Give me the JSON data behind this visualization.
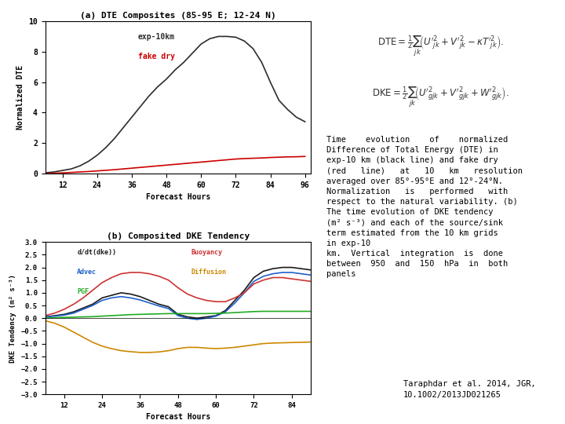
{
  "title_a": "(a) DTE Composites (85-95 E; 12-24 N)",
  "title_b": "(b) Composited DKE Tendency",
  "xlabel": "Forecast Hours",
  "ylabel_a": "Normalized DTE",
  "ylabel_b": "DKE Tendency (m² s⁻³)",
  "x_ticks": [
    12,
    24,
    36,
    48,
    60,
    72,
    84,
    96
  ],
  "x_ticks_b": [
    12,
    24,
    36,
    48,
    60,
    72,
    84
  ],
  "xlim_a": [
    6,
    98
  ],
  "xlim_b": [
    6,
    90
  ],
  "ylim_a": [
    0,
    10
  ],
  "ylim_b": [
    -3,
    3
  ],
  "y_ticks_a": [
    0,
    2,
    4,
    6,
    8,
    10
  ],
  "y_ticks_b": [
    -3,
    -2.5,
    -2,
    -1.5,
    -1,
    -0.5,
    0,
    0.5,
    1,
    1.5,
    2,
    2.5,
    3
  ],
  "exp10km_x": [
    6,
    9,
    12,
    15,
    18,
    21,
    24,
    27,
    30,
    33,
    36,
    39,
    42,
    45,
    48,
    51,
    54,
    57,
    60,
    63,
    66,
    69,
    72,
    75,
    78,
    81,
    84,
    87,
    90,
    93,
    96
  ],
  "exp10km_y": [
    0.05,
    0.1,
    0.2,
    0.3,
    0.5,
    0.8,
    1.2,
    1.7,
    2.3,
    3.0,
    3.7,
    4.4,
    5.1,
    5.7,
    6.2,
    6.8,
    7.3,
    7.9,
    8.5,
    8.85,
    9.0,
    9.0,
    8.95,
    8.7,
    8.2,
    7.3,
    6.0,
    4.8,
    4.2,
    3.7,
    3.4
  ],
  "fakedry_x": [
    6,
    9,
    12,
    15,
    18,
    21,
    24,
    27,
    30,
    33,
    36,
    39,
    42,
    45,
    48,
    51,
    54,
    57,
    60,
    63,
    66,
    69,
    72,
    75,
    78,
    81,
    84,
    87,
    90,
    93,
    96
  ],
  "fakedry_y": [
    0.0,
    0.02,
    0.04,
    0.07,
    0.1,
    0.13,
    0.17,
    0.21,
    0.25,
    0.3,
    0.35,
    0.4,
    0.45,
    0.5,
    0.55,
    0.6,
    0.65,
    0.7,
    0.75,
    0.8,
    0.85,
    0.9,
    0.95,
    0.98,
    1.0,
    1.02,
    1.05,
    1.07,
    1.09,
    1.1,
    1.12
  ],
  "dkdt_x": [
    6,
    9,
    12,
    15,
    18,
    21,
    24,
    27,
    30,
    33,
    36,
    39,
    42,
    45,
    48,
    51,
    54,
    57,
    60,
    63,
    66,
    69,
    72,
    75,
    78,
    81,
    84,
    87,
    90
  ],
  "dkdt_y": [
    0.05,
    0.1,
    0.15,
    0.25,
    0.4,
    0.55,
    0.8,
    0.9,
    1.0,
    0.95,
    0.85,
    0.7,
    0.55,
    0.45,
    0.15,
    0.05,
    0.0,
    0.05,
    0.1,
    0.3,
    0.7,
    1.1,
    1.6,
    1.85,
    1.95,
    2.0,
    2.0,
    1.95,
    1.9
  ],
  "advec_x": [
    6,
    9,
    12,
    15,
    18,
    21,
    24,
    27,
    30,
    33,
    36,
    39,
    42,
    45,
    48,
    51,
    54,
    57,
    60,
    63,
    66,
    69,
    72,
    75,
    78,
    81,
    84,
    87,
    90
  ],
  "advec_y": [
    0.05,
    0.08,
    0.12,
    0.2,
    0.35,
    0.5,
    0.7,
    0.8,
    0.85,
    0.8,
    0.72,
    0.6,
    0.48,
    0.38,
    0.1,
    0.0,
    -0.05,
    0.0,
    0.08,
    0.25,
    0.6,
    1.0,
    1.45,
    1.65,
    1.75,
    1.8,
    1.8,
    1.75,
    1.7
  ],
  "buoyancy_x": [
    6,
    9,
    12,
    15,
    18,
    21,
    24,
    27,
    30,
    33,
    36,
    39,
    42,
    45,
    48,
    51,
    54,
    57,
    60,
    63,
    66,
    69,
    72,
    75,
    78,
    81,
    84,
    87,
    90
  ],
  "buoyancy_y": [
    0.1,
    0.2,
    0.35,
    0.55,
    0.8,
    1.1,
    1.4,
    1.6,
    1.75,
    1.8,
    1.8,
    1.75,
    1.65,
    1.5,
    1.2,
    0.95,
    0.8,
    0.7,
    0.65,
    0.65,
    0.8,
    1.0,
    1.35,
    1.5,
    1.6,
    1.6,
    1.55,
    1.5,
    1.45
  ],
  "pgf_x": [
    6,
    9,
    12,
    15,
    18,
    21,
    24,
    27,
    30,
    33,
    36,
    39,
    42,
    45,
    48,
    51,
    54,
    57,
    60,
    63,
    66,
    69,
    72,
    75,
    78,
    81,
    84,
    87,
    90
  ],
  "pgf_y": [
    0.0,
    0.02,
    0.03,
    0.04,
    0.05,
    0.06,
    0.08,
    0.1,
    0.12,
    0.14,
    0.15,
    0.16,
    0.17,
    0.18,
    0.18,
    0.18,
    0.18,
    0.18,
    0.19,
    0.2,
    0.22,
    0.24,
    0.26,
    0.27,
    0.27,
    0.27,
    0.27,
    0.27,
    0.27
  ],
  "diffusion_x": [
    6,
    9,
    12,
    15,
    18,
    21,
    24,
    27,
    30,
    33,
    36,
    39,
    42,
    45,
    48,
    51,
    54,
    57,
    60,
    63,
    66,
    69,
    72,
    75,
    78,
    81,
    84,
    87,
    90
  ],
  "diffusion_y": [
    -0.1,
    -0.2,
    -0.35,
    -0.55,
    -0.75,
    -0.95,
    -1.1,
    -1.2,
    -1.28,
    -1.32,
    -1.35,
    -1.35,
    -1.33,
    -1.28,
    -1.2,
    -1.15,
    -1.15,
    -1.18,
    -1.2,
    -1.18,
    -1.15,
    -1.1,
    -1.05,
    -1.0,
    -0.98,
    -0.97,
    -0.96,
    -0.95,
    -0.94
  ],
  "right_text_lines": [
    "Time    evolution    of    normalized",
    "Difference of Total Energy (DTE) in",
    "exp-10 km (black line) and fake dry",
    "(red   line)   at   10   km   resolution",
    "averaged over 85°-95°E and 12°-24°N.",
    "Normalization   is   performed   with",
    "respect to the natural variability. (b)",
    "The time evolution of DKE tendency",
    "(m² s⁻³) and each of the source/sink",
    "term estimated from the 10 km grids",
    "in exp-10",
    "km.  Vertical  integration  is  done",
    "between  950  and  150  hPa  in  both",
    "panels"
  ],
  "citation": "Taraphdar et al. 2014, JGR,\n10.1002/2013JD021265",
  "bg_color": "#ffffff",
  "line_color_exp10": "#2c2c2c",
  "line_color_fakedry": "#cc0000",
  "line_color_dkdt": "#1a1a1a",
  "line_color_advec": "#1e60cc",
  "line_color_buoyancy": "#cc3333",
  "line_color_pgf": "#22aa22",
  "line_color_diffusion": "#cc8800"
}
